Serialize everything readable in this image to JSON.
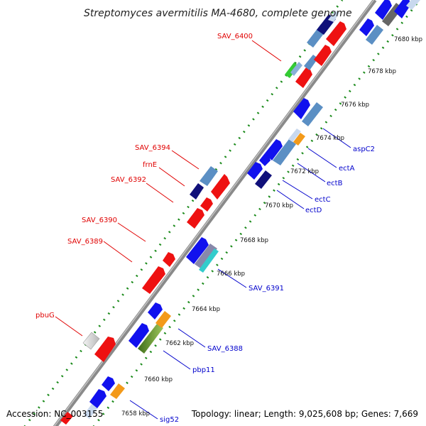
{
  "title": "Streptomyces avermitilis MA-4680, complete genome",
  "footer": {
    "accession": "Accession: NC_003155",
    "summary": "Topology: linear; Length: 9,025,608 bp; Genes: 7,669"
  },
  "colors": {
    "backbone": "#8a8a8a",
    "tick_dots": "#1a8a1a",
    "label_red": "#e00000",
    "label_blue": "#0000cc",
    "gene_red": "#ee1111",
    "gene_blue": "#1111ee",
    "gene_steel": "#5b8fc4",
    "gene_navy": "#10107a",
    "gene_orange": "#f39a1a",
    "gene_olive": "#5e8f2a",
    "gene_green": "#33cc33",
    "gene_gray": "#d0d0d0"
  },
  "ticks": [
    "7658 kbp",
    "7660 kbp",
    "7662 kbp",
    "7664 kbp",
    "7666 kbp",
    "7668 kbp",
    "7670 kbp",
    "7672 kbp",
    "7674 kbp",
    "7676 kbp",
    "7678 kbp",
    "7680 kbp"
  ],
  "labels_left": [
    {
      "text": "SAV_6400"
    },
    {
      "text": "SAV_6394"
    },
    {
      "text": "frnE"
    },
    {
      "text": "SAV_6392"
    },
    {
      "text": "SAV_6390"
    },
    {
      "text": "SAV_6389"
    },
    {
      "text": "pbuG"
    }
  ],
  "labels_right": [
    {
      "text": "aspC2"
    },
    {
      "text": "ectA"
    },
    {
      "text": "ectB"
    },
    {
      "text": "ectC"
    },
    {
      "text": "ectD"
    },
    {
      "text": "SAV_6391"
    },
    {
      "text": "SAV_6388"
    },
    {
      "text": "pbp11"
    },
    {
      "text": "sig52"
    }
  ]
}
